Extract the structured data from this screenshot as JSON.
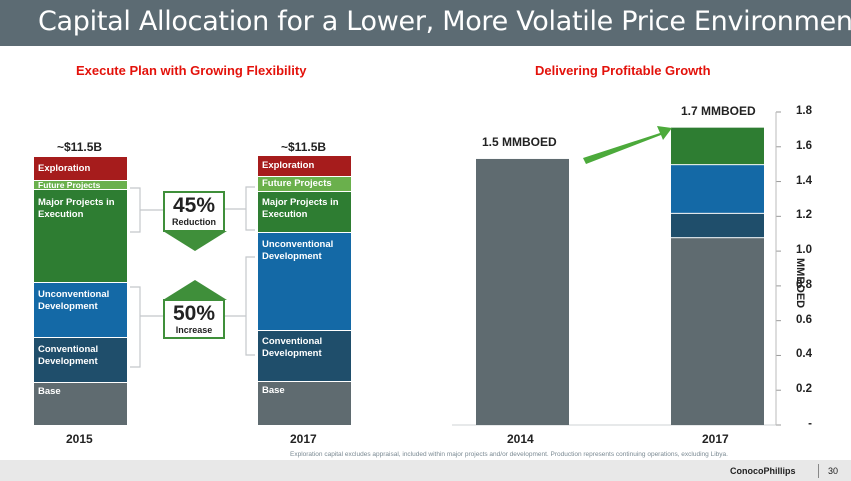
{
  "header": {
    "title": "Capital Allocation for a Lower, More Volatile Price Environment"
  },
  "left_panel": {
    "subtitle": "Execute Plan with Growing Flexibility",
    "bars": [
      {
        "year": "2015",
        "total": "~$11.5B",
        "segments": [
          {
            "label": "Base",
            "color": "#5f6b70"
          },
          {
            "label": "Conventional Development",
            "color": "#1f4e6b"
          },
          {
            "label": "Unconventional Development",
            "color": "#1469a6"
          },
          {
            "label": "Major Projects in Execution",
            "color": "#2e7d32"
          },
          {
            "label": "Future Projects",
            "color": "#6ab04c"
          },
          {
            "label": "Exploration",
            "color": "#a61c1c"
          }
        ]
      },
      {
        "year": "2017",
        "total": "~$11.5B",
        "segments": [
          {
            "label": "Base",
            "color": "#5f6b70"
          },
          {
            "label": "Conventional Development",
            "color": "#1f4e6b"
          },
          {
            "label": "Unconventional Development",
            "color": "#1469a6"
          },
          {
            "label": "Major Projects in Execution",
            "color": "#2e7d32"
          },
          {
            "label": "Future Projects",
            "color": "#6ab04c"
          },
          {
            "label": "Exploration",
            "color": "#a61c1c"
          }
        ]
      }
    ],
    "badges": {
      "reduction": {
        "pct": "45%",
        "word": "Reduction"
      },
      "increase": {
        "pct": "50%",
        "word": "Increase"
      }
    }
  },
  "chart_data": {
    "type": "bar",
    "title": "Delivering Profitable Growth",
    "ylabel": "MMBOED",
    "ylim": [
      0,
      1.8
    ],
    "yticks": [
      "1.8",
      "1.6",
      "1.4",
      "1.2",
      "1.0",
      "0.8",
      "0.6",
      "0.4",
      "0.2",
      "-"
    ],
    "categories": [
      "2014",
      "2017"
    ],
    "bar_labels": [
      "1.5 MMBOED",
      "1.7 MMBOED"
    ],
    "stacks": [
      [
        {
          "value": 1.53,
          "color": "#5f6b70"
        }
      ],
      [
        {
          "value": 1.08,
          "color": "#5f6b70"
        },
        {
          "value": 0.14,
          "color": "#1f4e6b"
        },
        {
          "value": 0.28,
          "color": "#1469a6"
        },
        {
          "value": 0.21,
          "color": "#2e7d32"
        }
      ]
    ]
  },
  "footer": {
    "footnote": "Exploration capital excludes appraisal, included within major projects and/or development. Production represents continuing operations, excluding Libya.",
    "brand": "ConocoPhillips",
    "page": "30"
  }
}
